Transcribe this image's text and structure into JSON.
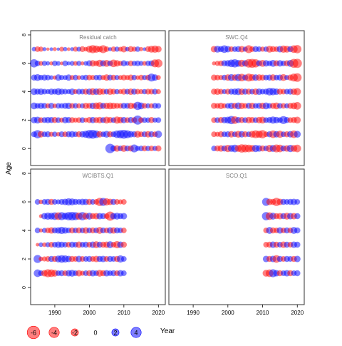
{
  "chart_data": {
    "type": "scatter",
    "ylabel": "Age",
    "xlabel": "Year",
    "x_ticks": [
      1990,
      2000,
      2010,
      2020
    ],
    "y_ticks": [
      0,
      2,
      4,
      6,
      8
    ],
    "xlim": [
      1983,
      2022
    ],
    "ylim": [
      -1.2,
      8.3
    ],
    "grid": false,
    "colors": {
      "positive": "#0000ff",
      "negative": "#ff0000"
    },
    "legend": {
      "placement": "bottom-left",
      "values": [
        -6,
        -4,
        -2,
        0,
        2,
        4
      ],
      "labels": [
        "-6",
        "-4",
        "-2",
        "0",
        "2",
        "4"
      ]
    },
    "panels": [
      {
        "title": "Residual catch",
        "ages": [
          0,
          1,
          2,
          3,
          4,
          5,
          6,
          7
        ],
        "years": [
          1984,
          2020
        ],
        "rows": {
          "7": [
            0.8,
            -1.2,
            -1.0,
            0.6,
            -0.4,
            0.5,
            -0.6,
            0.4,
            -0.9,
            0.7,
            -0.5,
            0.6,
            -1.0,
            0.9,
            -1.3,
            -0.8,
            -1.8,
            -2.5,
            -2.0,
            -1.5,
            -2.4,
            -1.2,
            0.6,
            -1.1,
            1.0,
            -0.9,
            -1.6,
            0.8,
            -1.4,
            -1.0,
            1.1,
            -0.7,
            0.5,
            -1.3,
            -1.8,
            -2.0,
            -1.6
          ],
          "6": [
            2.6,
            1.2,
            -0.8,
            1.0,
            0.7,
            -0.6,
            1.1,
            0.8,
            -0.5,
            1.2,
            0.6,
            0.9,
            -0.8,
            1.0,
            -0.6,
            0.8,
            1.4,
            -1.6,
            -1.2,
            -2.0,
            1.5,
            -1.8,
            1.2,
            -2.2,
            -1.6,
            -1.0,
            1.4,
            0.8,
            -1.2,
            1.0,
            1.2,
            0.9,
            -0.8,
            1.1,
            1.3,
            -2.4,
            -2.6
          ],
          "5": [
            1.4,
            1.8,
            1.1,
            1.4,
            1.2,
            0.8,
            -0.7,
            1.6,
            1.0,
            0.9,
            1.5,
            -0.9,
            1.2,
            -0.8,
            0.9,
            1.2,
            -1.2,
            -1.0,
            1.1,
            1.2,
            -1.0,
            -1.6,
            1.3,
            -1.2,
            1.0,
            -0.9,
            -1.3,
            -1.0,
            -1.4,
            1.1,
            -0.8,
            -1.2,
            1.0,
            -1.2,
            2.4,
            1.6,
            -0.9
          ],
          "4": [
            1.7,
            1.4,
            1.6,
            1.2,
            1.0,
            1.5,
            1.3,
            1.8,
            1.4,
            1.2,
            1.0,
            1.6,
            -1.0,
            1.3,
            1.2,
            -1.4,
            1.5,
            -1.8,
            1.6,
            -1.7,
            -1.4,
            1.2,
            -1.6,
            -1.3,
            1.1,
            -1.0,
            -1.4,
            1.2,
            -1.6,
            1.4,
            -1.2,
            -1.0,
            1.1,
            -1.3,
            -1.2,
            1.3,
            -1.0
          ],
          "3": [
            1.8,
            1.2,
            1.5,
            1.3,
            -1.0,
            1.4,
            -0.8,
            1.2,
            1.1,
            1.4,
            1.6,
            -1.2,
            1.2,
            -1.0,
            1.0,
            -1.5,
            -1.3,
            1.6,
            -1.8,
            -2.0,
            1.4,
            -1.6,
            -1.8,
            -1.6,
            -1.3,
            -1.2,
            1.4,
            1.3,
            -1.6,
            -1.2,
            2.6,
            1.8,
            -1.2,
            1.0,
            -1.0,
            1.3,
            1.2
          ],
          "2": [
            1.6,
            1.8,
            -1.2,
            1.3,
            1.5,
            1.4,
            -1.4,
            1.2,
            -1.0,
            1.6,
            1.4,
            -1.3,
            -1.0,
            -1.2,
            1.2,
            -0.9,
            -1.4,
            1.5,
            -1.3,
            -1.6,
            1.3,
            -1.8,
            -1.4,
            1.2,
            -2.0,
            -1.6,
            1.5,
            -1.2,
            1.4,
            -1.3,
            3.2,
            -1.2,
            1.2,
            1.1,
            -1.4,
            1.0,
            1.2
          ],
          "1": [
            1.3,
            2.6,
            -1.6,
            1.2,
            1.4,
            -1.0,
            1.1,
            -0.8,
            1.3,
            -1.2,
            1.4,
            1.6,
            1.2,
            -1.4,
            1.5,
            2.0,
            2.8,
            3.0,
            2.2,
            -1.6,
            1.2,
            1.8,
            -1.4,
            1.3,
            2.2,
            2.6,
            3.0,
            2.4,
            1.6,
            1.4,
            -1.8,
            -1.2,
            1.3,
            -1.6,
            1.4,
            -1.2,
            2.0
          ],
          "0": [
            null,
            null,
            null,
            null,
            null,
            null,
            null,
            null,
            null,
            null,
            null,
            null,
            null,
            null,
            null,
            null,
            null,
            null,
            null,
            null,
            null,
            null,
            3.4,
            1.4,
            -1.6,
            1.2,
            -1.8,
            1.3,
            -1.4,
            2.4,
            1.0,
            1.2,
            -1.3,
            1.1,
            -1.2,
            1.0,
            -1.4
          ]
        }
      },
      {
        "title": "SWC.Q4",
        "ages": [
          0,
          1,
          2,
          3,
          4,
          5,
          6,
          7
        ],
        "years": [
          1996,
          2020
        ],
        "rows": {
          "7": [
            -1.6,
            1.8,
            1.4,
            2.2,
            1.6,
            -1.2,
            1.2,
            1.4,
            -1.6,
            1.0,
            -2.4,
            -1.2,
            1.4,
            1.2,
            -1.0,
            1.1,
            -1.8,
            -1.4,
            -1.2,
            1.6,
            -2.0,
            -1.8,
            1.4,
            -2.2,
            -2.6
          ],
          "6": [
            -0.6,
            -1.0,
            -1.2,
            1.4,
            1.6,
            2.2,
            2.6,
            1.8,
            -2.0,
            1.6,
            -2.8,
            -3.0,
            -2.6,
            1.4,
            -1.8,
            1.6,
            1.2,
            1.8,
            -1.4,
            1.6,
            1.2,
            -1.4,
            1.8,
            -3.0,
            -3.2
          ],
          "5": [
            -1.4,
            -1.2,
            -1.0,
            1.2,
            -1.6,
            1.8,
            -1.6,
            2.0,
            -2.2,
            1.4,
            -2.4,
            -1.8,
            1.6,
            -1.6,
            -1.4,
            1.2,
            1.4,
            -1.6,
            1.2,
            1.4,
            -1.8,
            1.0,
            -1.4,
            -2.4,
            -2.8
          ],
          "4": [
            -1.4,
            -1.6,
            -1.2,
            1.0,
            -1.3,
            1.4,
            1.6,
            1.8,
            -1.6,
            1.4,
            -1.4,
            1.2,
            -1.6,
            1.6,
            1.2,
            1.4,
            2.2,
            2.0,
            1.6,
            -1.4,
            -1.2,
            1.2,
            1.4,
            -1.6,
            -2.0
          ],
          "3": [
            -1.4,
            -1.2,
            -1.6,
            -1.0,
            1.2,
            1.6,
            -1.4,
            1.8,
            -1.6,
            -1.2,
            1.4,
            -1.6,
            1.2,
            1.4,
            -1.6,
            1.8,
            1.2,
            -1.4,
            -1.8,
            1.2,
            -1.2,
            1.0,
            -1.4,
            -1.8,
            -2.2
          ],
          "2": [
            -1.2,
            1.2,
            -1.4,
            1.6,
            1.8,
            2.6,
            -2.2,
            1.4,
            -1.4,
            1.2,
            -1.6,
            -1.4,
            1.2,
            -1.6,
            -1.8,
            1.2,
            1.4,
            2.0,
            1.6,
            1.2,
            2.4,
            1.4,
            -1.2,
            -1.4,
            -1.8
          ],
          "1": [
            -1.2,
            -1.0,
            -1.4,
            1.2,
            1.4,
            -1.6,
            1.2,
            -1.8,
            1.6,
            -1.4,
            1.2,
            -1.8,
            -2.4,
            -2.0,
            -2.6,
            -1.2,
            1.4,
            -2.2,
            1.6,
            -2.0,
            1.2,
            -1.4,
            1.6,
            -2.2,
            1.8
          ],
          "0": [
            1.2,
            -1.4,
            -1.6,
            1.4,
            -2.0,
            1.8,
            2.2,
            -1.8,
            -2.6,
            -2.4,
            -2.2,
            -1.8,
            2.0,
            1.6,
            -1.4,
            1.2,
            -2.0,
            1.8,
            -2.4,
            -2.2,
            1.4,
            -1.6,
            2.0,
            -1.8,
            -2.2
          ]
        }
      },
      {
        "title": "WCIBTS.Q1",
        "ages": [
          1,
          2,
          3,
          4,
          5,
          6
        ],
        "years": [
          1985,
          2010
        ],
        "rows": {
          "6": [
            1.2,
            -0.8,
            1.2,
            1.4,
            -1.4,
            1.2,
            1.0,
            1.3,
            1.6,
            2.0,
            1.8,
            1.4,
            1.2,
            1.6,
            1.5,
            -1.4,
            1.2,
            -1.2,
            -2.6,
            2.4,
            -2.0,
            -1.6,
            1.4,
            -1.2,
            -1.0,
            -1.2
          ],
          "5": [
            null,
            -0.6,
            1.6,
            2.0,
            1.8,
            2.2,
            -2.2,
            2.4,
            1.8,
            2.6,
            2.8,
            2.4,
            -2.0,
            2.6,
            -1.8,
            1.8,
            -1.4,
            -1.6,
            1.6,
            1.4,
            -1.2,
            -3.2,
            1.6,
            1.8,
            1.4,
            1.6
          ],
          "4": [
            1.2,
            -0.6,
            1.0,
            -1.2,
            -1.6,
            1.4,
            1.6,
            2.0,
            1.6,
            1.2,
            -1.4,
            1.2,
            -1.4,
            1.2,
            -1.6,
            1.2,
            -1.4,
            1.2,
            -1.8,
            1.3,
            -1.2,
            1.6,
            -1.6,
            1.4,
            1.2,
            -1.2
          ],
          "3": [
            -0.5,
            0.8,
            -0.8,
            1.0,
            -1.2,
            1.2,
            1.6,
            1.4,
            1.2,
            -1.2,
            1.4,
            1.2,
            -1.6,
            1.2,
            1.4,
            -1.2,
            1.6,
            -1.8,
            1.4,
            -1.4,
            -1.6,
            1.8,
            -1.2,
            -2.0,
            1.6,
            -1.4
          ],
          "2": [
            2.4,
            -0.8,
            -1.0,
            -1.2,
            1.4,
            -1.4,
            1.8,
            2.2,
            2.0,
            1.6,
            -1.4,
            -1.2,
            1.6,
            -1.2,
            1.2,
            1.4,
            -1.2,
            -1.6,
            1.4,
            1.6,
            -1.2,
            1.4,
            1.2,
            -1.4,
            2.0,
            1.2
          ],
          "1": [
            2.2,
            1.2,
            -1.6,
            -2.4,
            -2.2,
            -1.8,
            1.2,
            1.4,
            -1.2,
            1.6,
            1.8,
            1.2,
            -1.6,
            -1.0,
            1.2,
            -1.4,
            1.6,
            1.2,
            -1.8,
            -1.4,
            1.6,
            1.2,
            1.4,
            -1.2,
            1.6,
            1.2
          ]
        }
      },
      {
        "title": "SCO.Q1",
        "ages": [
          1,
          2,
          3,
          4,
          5,
          6
        ],
        "years": [
          2011,
          2020
        ],
        "rows": {
          "6": [
            2.4,
            -1.6,
            -1.4,
            -2.6,
            -1.6,
            1.4,
            1.2,
            1.4,
            1.6,
            1.2
          ],
          "5": [
            2.6,
            -2.2,
            1.8,
            -1.4,
            -1.6,
            1.4,
            -1.8,
            1.6,
            -1.6,
            1.4
          ],
          "4": [
            -1.2,
            1.8,
            -1.4,
            -1.2,
            1.6,
            -1.2,
            1.4,
            -1.2,
            1.8,
            1.4
          ],
          "3": [
            -1.2,
            -1.4,
            1.6,
            -1.4,
            1.2,
            -1.6,
            1.4,
            -1.2,
            1.6,
            1.4
          ],
          "2": [
            1.6,
            -1.4,
            1.6,
            -2.2,
            1.4,
            -1.2,
            1.4,
            1.2,
            -1.4,
            1.6
          ],
          "1": [
            -1.8,
            -2.2,
            2.4,
            1.6,
            -1.4,
            1.2,
            1.6,
            -1.4,
            1.2,
            1.4
          ]
        }
      }
    ]
  }
}
